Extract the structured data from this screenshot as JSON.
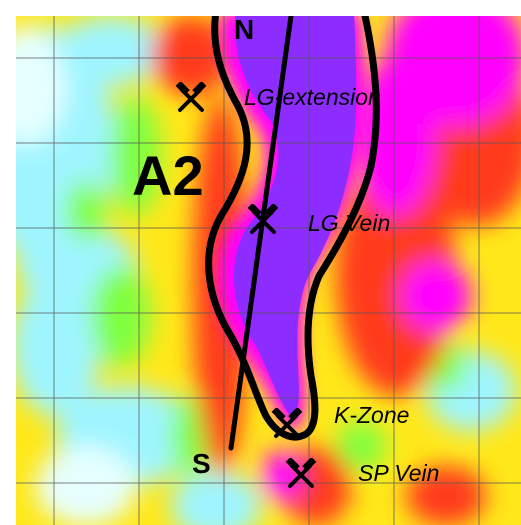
{
  "map": {
    "area_label": "A2",
    "section_start": "N",
    "section_end": "S",
    "sites": [
      {
        "name": "LG-extension",
        "icon": "crossed-hammers-icon"
      },
      {
        "name": "LG Vein",
        "icon": "crossed-hammers-icon"
      },
      {
        "name": "K-Zone",
        "icon": "crossed-hammers-icon"
      },
      {
        "name": "SP Vein",
        "icon": "crossed-hammers-icon"
      }
    ],
    "colors": {
      "anomaly_core": "#8c2cff",
      "high": "#ff00ff",
      "mid_high": "#ff3b1a",
      "mid": "#ffff00",
      "low_mid": "#80ff40",
      "low": "#9ff5ff",
      "lowest": "#e6ffff",
      "outline": "#000000",
      "grid": "#555555"
    }
  }
}
